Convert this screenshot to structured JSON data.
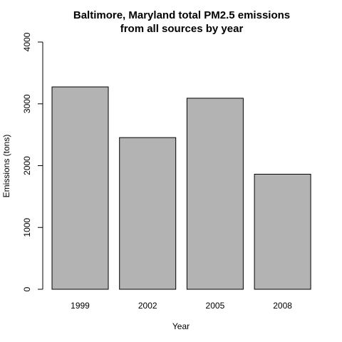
{
  "chart_data": {
    "type": "bar",
    "title": "Baltimore, Maryland total PM2.5 emissions",
    "subtitle": "from all sources by year",
    "xlabel": "Year",
    "ylabel": "Emissions (tons)",
    "categories": [
      "1999",
      "2002",
      "2005",
      "2008"
    ],
    "values": [
      3274,
      2454,
      3091,
      1862
    ],
    "ylim": [
      0,
      4000
    ],
    "yticks": [
      "0",
      "1000",
      "2000",
      "3000",
      "4000"
    ],
    "grid": false,
    "legend": "none",
    "colors": {
      "bar_fill": "#b3b3b3",
      "bar_stroke": "#000000",
      "axis": "#000000"
    }
  }
}
